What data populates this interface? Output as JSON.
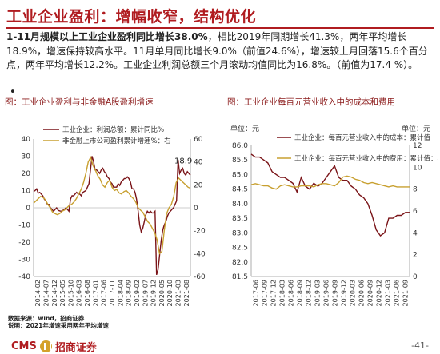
{
  "page": {
    "title": "工业企业盈利：增幅收窄，结构优化",
    "para_bold": "1-11月规模以上工业企业盈利同比增长38.0%",
    "para_rest": "，相比2019年同期增长41.3%，两年平均增长18.9%，增速保持较高水平。11月单月同比增长9.0%（前值24.6%），增速较上月回落15.6个百分点，两年平均增长12.2%。工业企业利润总额三个月滚动均值同比为16.8%。（前值为17.4 %）。",
    "bullet": "•",
    "source": "数据来源：wind，招商证券",
    "note": "说明：2021年增速采用两年平均增速",
    "logo_text": "CMS",
    "logo_cn": "招商证券",
    "page_number": "-41-",
    "colors": {
      "brand_red": "#b01c20",
      "series1": "#7a1418",
      "series2": "#c8a030"
    }
  },
  "chart_data": [
    {
      "type": "line",
      "title": "图：工业企业盈利与非金融A股盈利增速",
      "x_ticks": [
        "2014-02",
        "2014-07",
        "2014-12",
        "2015-05",
        "2015-10",
        "2016-03",
        "2016-08",
        "2017-01",
        "2017-06",
        "2017-11",
        "2018-04",
        "2018-09",
        "2019-02",
        "2019-07",
        "2019-12",
        "2020-05",
        "2020-10",
        "2021-03",
        "2021-08"
      ],
      "y_left": {
        "lim": [
          -40,
          40
        ],
        "ticks": [
          40,
          30,
          20,
          10,
          0,
          -10,
          -20,
          -30,
          -40
        ]
      },
      "y_right": {
        "lim": [
          -60,
          60
        ],
        "ticks": [
          60,
          40,
          20,
          0,
          -20,
          -40,
          -60
        ]
      },
      "annotation": "18.9",
      "series": [
        {
          "name": "工业企业：利润总额：累计同比%",
          "axis": "left",
          "values": [
            9.5,
            10,
            11,
            8.5,
            9,
            8,
            7,
            5,
            4,
            2,
            2,
            0,
            -1,
            -2,
            -1,
            0,
            -1.5,
            -1.8,
            -2,
            -1.5,
            -1,
            0,
            -1,
            -2,
            5,
            7,
            7,
            8,
            9,
            8,
            8,
            7,
            9,
            9.5,
            10,
            12,
            14,
            22,
            30,
            27,
            22,
            22,
            21,
            20,
            22,
            23,
            21,
            20,
            18,
            17,
            15,
            14,
            12,
            12,
            12,
            14,
            13,
            15,
            16,
            17,
            17,
            18,
            17,
            15,
            11,
            11,
            9,
            5,
            -2,
            -10,
            -14,
            -12,
            -8,
            -4,
            -2,
            -3,
            -2,
            -3,
            -3,
            -2,
            -39,
            -36,
            -27,
            -19,
            -13,
            -10,
            -8,
            -5,
            -3,
            -2,
            -1,
            0,
            2,
            4,
            28,
            20,
            22,
            23,
            20,
            19,
            21,
            20,
            19
          ]
        },
        {
          "name": "非金融上市公司盈利累计增速%：右",
          "axis": "right",
          "values": [
            4,
            6,
            8,
            10,
            9,
            7,
            3,
            0,
            -4,
            -5,
            -6,
            -5,
            -3,
            -2,
            0,
            2,
            3,
            5,
            8,
            12,
            16,
            22,
            30,
            40,
            44,
            37,
            33,
            28,
            25,
            20,
            18,
            22,
            24,
            18,
            15,
            16,
            13,
            12,
            14,
            15,
            13,
            10,
            8,
            5,
            0,
            -2,
            -4,
            -8,
            -12,
            -14,
            -18,
            -22,
            -28,
            -40,
            -38,
            -20,
            -5,
            0,
            3,
            10,
            22,
            26,
            24,
            22,
            20,
            18,
            17
          ]
        }
      ]
    },
    {
      "type": "line",
      "title": "图：工业企业每百元营业收入中的成本和费用",
      "ylabel_left": "单位：元",
      "ylabel_right": "单位：元",
      "x_ticks": [
        "2017-06",
        "2017-09",
        "2017-12",
        "2018-03",
        "2018-06",
        "2018-09",
        "2018-12",
        "2019-03",
        "2019-06",
        "2019-09",
        "2019-12",
        "2020-03",
        "2020-06",
        "2020-09",
        "2020-12",
        "2021-03",
        "2021-06",
        "2021-09"
      ],
      "y_left": {
        "lim": [
          81.5,
          86.0
        ],
        "ticks": [
          "86.0",
          "85.5",
          "85.0",
          "84.5",
          "84.0",
          "83.5",
          "83.0",
          "82.5",
          "82.0",
          "81.5"
        ]
      },
      "y_right": {
        "lim": [
          0,
          12
        ],
        "ticks": [
          "12",
          "10",
          "8",
          "6",
          "4",
          "2",
          "0"
        ]
      },
      "series": [
        {
          "name": "工业企业：每百元营业收入中的成本：累计值",
          "axis": "left",
          "values": [
            85.7,
            85.6,
            85.6,
            85.5,
            85.4,
            85.1,
            85.0,
            84.9,
            84.9,
            84.8,
            84.7,
            84.4,
            84.9,
            84.6,
            84.5,
            84.7,
            84.6,
            84.7,
            84.9,
            85.1,
            85.3,
            84.9,
            84.8,
            84.8,
            84.6,
            84.5,
            84.3,
            84.2,
            84.0,
            83.6,
            83.1,
            82.9,
            83.0,
            83.5,
            83.5,
            83.6,
            83.6,
            83.7,
            83.7
          ]
        },
        {
          "name": "工业企业：每百元营业收入中的费用：累计值：右",
          "axis": "right",
          "values": [
            8.4,
            8.5,
            8.4,
            8.3,
            8.3,
            8.1,
            8.0,
            8.3,
            8.4,
            8.3,
            8.2,
            8.2,
            8.3,
            8.3,
            8.3,
            8.2,
            8.4,
            8.5,
            8.5,
            8.4,
            8.3,
            8.6,
            9.1,
            9.2,
            9.1,
            8.9,
            8.8,
            8.6,
            8.5,
            8.6,
            8.5,
            8.4,
            8.3,
            8.2,
            8.3,
            8.2,
            8.2,
            8.2,
            8.2
          ]
        }
      ]
    }
  ]
}
